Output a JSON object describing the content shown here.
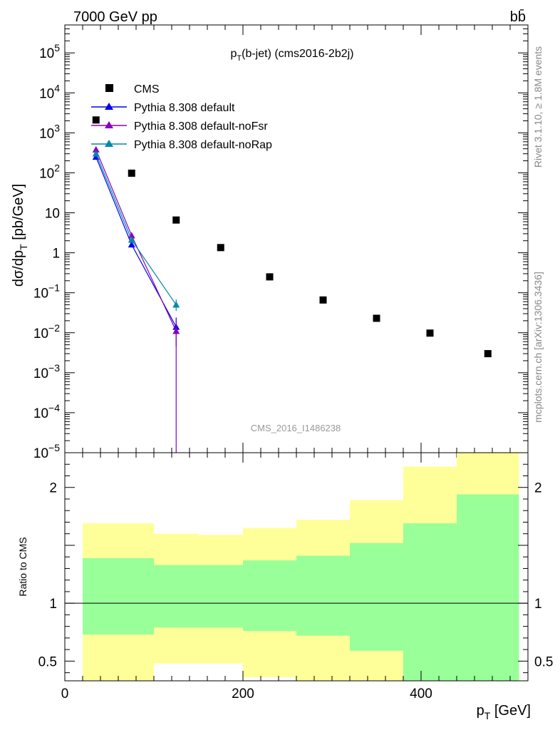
{
  "header": {
    "energy_label": "7000 GeV pp",
    "process_label": "bb̄",
    "plot_title": "p_T(b-jet) (cms2016-2b2j)",
    "watermark": "CMS_2016_I1486238",
    "side_label_top": "Rivet 3.1.10, ≥ 1.8M events",
    "side_label_bottom": "mcplots.cern.ch [arXiv:1306.3436]"
  },
  "chart_data": {
    "type": "scatter",
    "x_label": "p_T [GeV]",
    "y_label": "dσ/dp_T [pb/GeV]",
    "ratio_label": "Ratio to CMS",
    "x_range": [
      0,
      520
    ],
    "y_range_log": [
      1e-05,
      500000.0
    ],
    "ratio_range": [
      0.33,
      2.3
    ],
    "x_ticks": [
      "0",
      "200",
      "400"
    ],
    "y_ticks": [
      {
        "v": 100000.0,
        "t": "10",
        "e": "5"
      },
      {
        "v": 10000.0,
        "t": "10",
        "e": "4"
      },
      {
        "v": 1000.0,
        "t": "10",
        "e": "3"
      },
      {
        "v": 100.0,
        "t": "10",
        "e": "2"
      },
      {
        "v": 10,
        "t": "10",
        "e": ""
      },
      {
        "v": 1,
        "t": "1",
        "e": ""
      },
      {
        "v": 0.1,
        "t": "10",
        "e": "−1"
      },
      {
        "v": 0.01,
        "t": "10",
        "e": "−2"
      },
      {
        "v": 0.001,
        "t": "10",
        "e": "−3"
      },
      {
        "v": 0.0001,
        "t": "10",
        "e": "−4"
      },
      {
        "v": 1e-05,
        "t": "10",
        "e": "−5"
      }
    ],
    "ratio_ticks": [
      {
        "v": 2,
        "t": "2"
      },
      {
        "v": 1,
        "t": "1"
      },
      {
        "v": 0.5,
        "t": "0.5"
      }
    ],
    "cms": {
      "name": "CMS",
      "color": "#000000",
      "points": [
        {
          "x": 35,
          "y": 2100
        },
        {
          "x": 75,
          "y": 98
        },
        {
          "x": 125,
          "y": 6.6
        },
        {
          "x": 175,
          "y": 1.35
        },
        {
          "x": 230,
          "y": 0.25
        },
        {
          "x": 290,
          "y": 0.066
        },
        {
          "x": 350,
          "y": 0.023
        },
        {
          "x": 410,
          "y": 0.0098
        },
        {
          "x": 475,
          "y": 0.003
        }
      ]
    },
    "series": [
      {
        "name": "Pythia 8.308 default",
        "color": "#0000ee",
        "points": [
          {
            "x": 35,
            "y": 250
          },
          {
            "x": 75,
            "y": 1.6
          },
          {
            "x": 125,
            "y": 0.014,
            "err_lo": 0.0045,
            "err_hi": 0.024
          }
        ]
      },
      {
        "name": "Pythia 8.308 default-noFsr",
        "color": "#8800bb",
        "points": [
          {
            "x": 35,
            "y": 380
          },
          {
            "x": 75,
            "y": 2.7
          },
          {
            "x": 125,
            "y": 0.011,
            "err_lo": 1e-07,
            "err_hi": 0.02
          }
        ]
      },
      {
        "name": "Pythia 8.308 default-noRap",
        "color": "#0088aa",
        "points": [
          {
            "x": 35,
            "y": 300
          },
          {
            "x": 75,
            "y": 2.1
          },
          {
            "x": 125,
            "y": 0.05,
            "err_lo": 0.035,
            "err_hi": 0.068
          }
        ]
      }
    ],
    "ratio_bands": [
      {
        "x0": 20,
        "x1": 100,
        "yellow": [
          0.33,
          1.69
        ],
        "green": [
          0.73,
          1.39
        ]
      },
      {
        "x0": 100,
        "x1": 150,
        "yellow": [
          0.48,
          1.6
        ],
        "green": [
          0.79,
          1.33
        ]
      },
      {
        "x0": 150,
        "x1": 200,
        "yellow": [
          0.48,
          1.59
        ],
        "green": [
          0.79,
          1.33
        ]
      },
      {
        "x0": 200,
        "x1": 260,
        "yellow": [
          0.36,
          1.65
        ],
        "green": [
          0.76,
          1.37
        ]
      },
      {
        "x0": 260,
        "x1": 320,
        "yellow": [
          0.33,
          1.72
        ],
        "green": [
          0.72,
          1.41
        ]
      },
      {
        "x0": 320,
        "x1": 380,
        "yellow": [
          0.33,
          1.89
        ],
        "green": [
          0.59,
          1.52
        ]
      },
      {
        "x0": 380,
        "x1": 440,
        "yellow": [
          0.33,
          2.18
        ],
        "green": [
          0.33,
          1.69
        ]
      },
      {
        "x0": 440,
        "x1": 510,
        "yellow": [
          0.33,
          2.3
        ],
        "green": [
          0.33,
          1.94
        ]
      }
    ],
    "band_colors": {
      "yellow": "#ffff99",
      "green": "#99ff99"
    }
  }
}
